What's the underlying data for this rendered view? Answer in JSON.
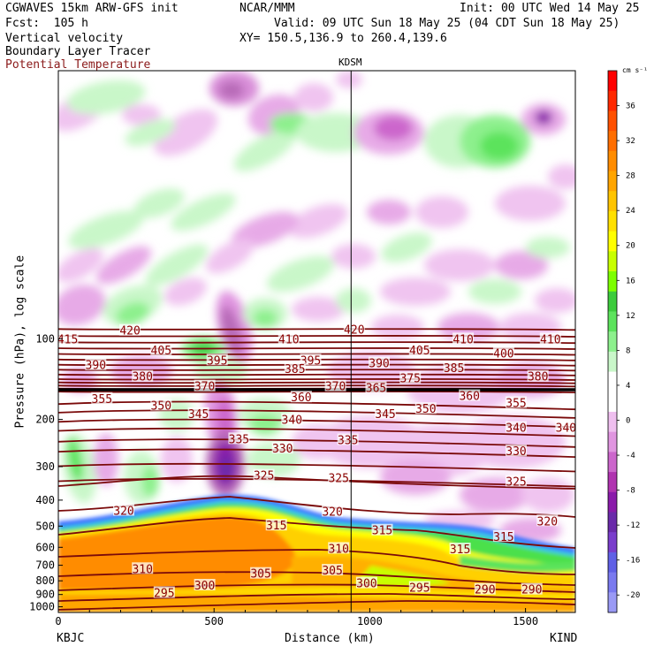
{
  "header": {
    "model": "CGWAVES 15km ARW-GFS init",
    "org": "NCAR/MMM",
    "init": "Init: 00 UTC Wed 14 May 25",
    "fcst": "Fcst:  105 h",
    "valid": "Valid: 09 UTC Sun 18 May 25 (04 CDT Sun 18 May 25)",
    "field1": "Vertical velocity",
    "field2": "Boundary Layer Tracer",
    "field3": "Potential Temperature",
    "xy": "XY= 150.5,136.9 to 260.4,139.6"
  },
  "colors": {
    "theta": "#7a0a0a",
    "theta_label": "#8b0000"
  },
  "chart_data": {
    "type": "heatmap",
    "ylabel": "Pressure (hPa), log scale",
    "xlabel": "Distance (km)",
    "x_ticks": [
      0,
      500,
      1000,
      1500
    ],
    "y_ticks": [
      100,
      200,
      300,
      400,
      500,
      600,
      700,
      800,
      900,
      1000
    ],
    "xlim": [
      0,
      1660
    ],
    "ylim_hpa": [
      1050,
      10
    ],
    "y_scale": "log",
    "left_station": "KBJC",
    "right_station": "KIND",
    "marker_station": "KDSM",
    "marker_km": 940,
    "colorbar": {
      "unit": "cm s⁻¹",
      "tick_labels": [
        "36",
        "32",
        "28",
        "24",
        "20",
        "16",
        "12",
        "8",
        "4",
        "0",
        "-4",
        "-8",
        "-12",
        "-16",
        "-20"
      ],
      "colors": [
        "#ff0000",
        "#ff2800",
        "#ff5000",
        "#ff6e00",
        "#ff8c00",
        "#ffa500",
        "#ffc400",
        "#ffe000",
        "#ffff00",
        "#c8ff00",
        "#7dff00",
        "#3ccc3c",
        "#5ce35c",
        "#8df08d",
        "#c9f7c9",
        "#ffffff",
        "#ffffff",
        "#efbfef",
        "#e095e0",
        "#cc66cc",
        "#b033b0",
        "#8a1aaa",
        "#6a2aaa",
        "#7a3dcc",
        "#6060e6",
        "#7a7af0",
        "#9a9af5"
      ]
    },
    "theta_labels": [
      {
        "v": "420",
        "x": 230,
        "p": 93
      },
      {
        "v": "420",
        "x": 950,
        "p": 92
      },
      {
        "v": "415",
        "x": 30,
        "p": 100
      },
      {
        "v": "410",
        "x": 740,
        "p": 100
      },
      {
        "v": "410",
        "x": 1300,
        "p": 100
      },
      {
        "v": "410",
        "x": 1580,
        "p": 100
      },
      {
        "v": "405",
        "x": 330,
        "p": 110
      },
      {
        "v": "405",
        "x": 1160,
        "p": 110
      },
      {
        "v": "400",
        "x": 1430,
        "p": 113
      },
      {
        "v": "395",
        "x": 510,
        "p": 120
      },
      {
        "v": "395",
        "x": 810,
        "p": 120
      },
      {
        "v": "390",
        "x": 120,
        "p": 125
      },
      {
        "v": "390",
        "x": 1030,
        "p": 123
      },
      {
        "v": "385",
        "x": 760,
        "p": 129
      },
      {
        "v": "385",
        "x": 1270,
        "p": 128
      },
      {
        "v": "380",
        "x": 270,
        "p": 138
      },
      {
        "v": "380",
        "x": 1540,
        "p": 138
      },
      {
        "v": "375",
        "x": 1130,
        "p": 140
      },
      {
        "v": "370",
        "x": 470,
        "p": 150
      },
      {
        "v": "370",
        "x": 890,
        "p": 150
      },
      {
        "v": "365",
        "x": 1020,
        "p": 152
      },
      {
        "v": "360",
        "x": 780,
        "p": 165
      },
      {
        "v": "360",
        "x": 1320,
        "p": 163
      },
      {
        "v": "355",
        "x": 140,
        "p": 167
      },
      {
        "v": "355",
        "x": 1470,
        "p": 173
      },
      {
        "v": "350",
        "x": 330,
        "p": 177
      },
      {
        "v": "350",
        "x": 1180,
        "p": 182
      },
      {
        "v": "345",
        "x": 450,
        "p": 190
      },
      {
        "v": "345",
        "x": 1050,
        "p": 190
      },
      {
        "v": "340",
        "x": 750,
        "p": 200
      },
      {
        "v": "340",
        "x": 1470,
        "p": 214
      },
      {
        "v": "340",
        "x": 1630,
        "p": 214
      },
      {
        "v": "335",
        "x": 580,
        "p": 236
      },
      {
        "v": "335",
        "x": 930,
        "p": 238
      },
      {
        "v": "330",
        "x": 720,
        "p": 256
      },
      {
        "v": "330",
        "x": 1470,
        "p": 262
      },
      {
        "v": "325",
        "x": 660,
        "p": 323
      },
      {
        "v": "325",
        "x": 900,
        "p": 330
      },
      {
        "v": "325",
        "x": 1470,
        "p": 340
      },
      {
        "v": "320",
        "x": 210,
        "p": 437
      },
      {
        "v": "320",
        "x": 880,
        "p": 440
      },
      {
        "v": "320",
        "x": 1570,
        "p": 478
      },
      {
        "v": "315",
        "x": 700,
        "p": 496
      },
      {
        "v": "315",
        "x": 1040,
        "p": 517
      },
      {
        "v": "315",
        "x": 1430,
        "p": 546
      },
      {
        "v": "315",
        "x": 1290,
        "p": 608
      },
      {
        "v": "310",
        "x": 900,
        "p": 605
      },
      {
        "v": "310",
        "x": 270,
        "p": 720
      },
      {
        "v": "305",
        "x": 650,
        "p": 750
      },
      {
        "v": "305",
        "x": 880,
        "p": 730
      },
      {
        "v": "300",
        "x": 470,
        "p": 830
      },
      {
        "v": "300",
        "x": 990,
        "p": 815
      },
      {
        "v": "295",
        "x": 340,
        "p": 885
      },
      {
        "v": "295",
        "x": 1160,
        "p": 845
      },
      {
        "v": "290",
        "x": 1370,
        "p": 860
      },
      {
        "v": "290",
        "x": 1520,
        "p": 860
      }
    ]
  }
}
